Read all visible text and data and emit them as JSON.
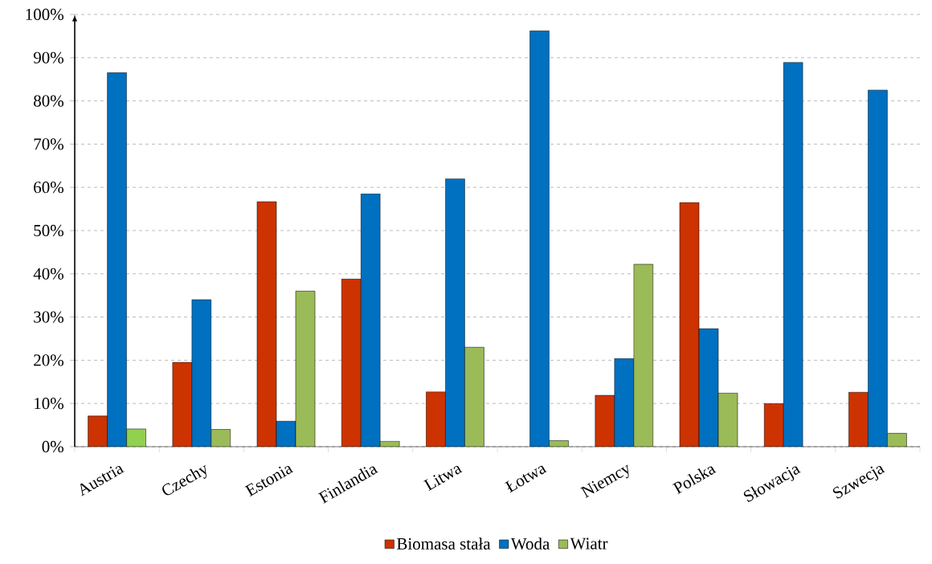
{
  "chart_data": {
    "type": "bar",
    "categories": [
      "Austria",
      "Czechy",
      "Estonia",
      "Finlandia",
      "Litwa",
      "Łotwa",
      "Niemcy",
      "Polska",
      "Słowacja",
      "Szwecja"
    ],
    "series": [
      {
        "name": "Biomasa stała",
        "color": "#cc3300",
        "values": [
          7.1,
          19.5,
          56.7,
          38.8,
          12.7,
          null,
          11.9,
          56.5,
          10.0,
          12.6
        ]
      },
      {
        "name": "Woda",
        "color": "#0070c0",
        "values": [
          86.5,
          34.0,
          5.9,
          58.5,
          62.0,
          96.2,
          20.4,
          27.3,
          88.9,
          82.5
        ]
      },
      {
        "name": "Wiatr",
        "color": "#9bbb59",
        "colors": [
          "#92d050",
          "#9bbb59",
          "#9bbb59",
          "#9bbb59",
          "#9bbb59",
          "#9bbb59",
          "#9bbb59",
          "#9bbb59",
          "#9bbb59",
          "#9bbb59"
        ],
        "values": [
          4.1,
          4.0,
          36.0,
          1.3,
          23.0,
          1.4,
          42.2,
          12.4,
          null,
          3.1
        ]
      }
    ],
    "ylim": [
      0,
      100
    ],
    "yticks": [
      {
        "value": 0,
        "label": "0%"
      },
      {
        "value": 10,
        "label": "10%"
      },
      {
        "value": 20,
        "label": "20%"
      },
      {
        "value": 30,
        "label": "30%"
      },
      {
        "value": 40,
        "label": "40%"
      },
      {
        "value": 50,
        "label": "50%"
      },
      {
        "value": 60,
        "label": "60%"
      },
      {
        "value": 70,
        "label": "70%"
      },
      {
        "value": 80,
        "label": "80%"
      },
      {
        "value": 90,
        "label": "90%"
      },
      {
        "value": 100,
        "label": "100%"
      }
    ],
    "grid": "y",
    "legend": "bottom"
  }
}
